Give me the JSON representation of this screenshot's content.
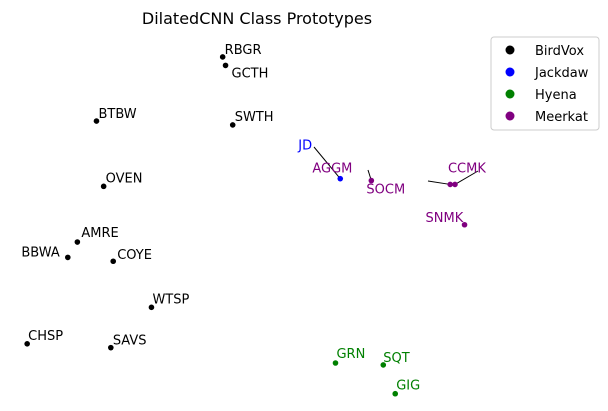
{
  "chart_data": {
    "type": "scatter",
    "title": "DilatedCNN Class Prototypes",
    "xlabel": "",
    "ylabel": "",
    "axes_visible": false,
    "grid": false,
    "legend_position": "top-right",
    "xlim": [
      0,
      100
    ],
    "ylim": [
      0,
      100
    ],
    "series": [
      {
        "name": "BirdVox",
        "color": "#000000",
        "points": [
          {
            "label": "RBGR",
            "x": 42.4,
            "y": 92.2
          },
          {
            "label": "GCTH",
            "x": 43.0,
            "y": 90.0
          },
          {
            "label": "BTBW",
            "x": 16.0,
            "y": 75.5
          },
          {
            "label": "SWTH",
            "x": 44.5,
            "y": 74.5
          },
          {
            "label": "OVEN",
            "x": 17.5,
            "y": 58.5
          },
          {
            "label": "AMRE",
            "x": 12.0,
            "y": 44.0
          },
          {
            "label": "BBWA",
            "x": 10.0,
            "y": 40.0
          },
          {
            "label": "COYE",
            "x": 19.5,
            "y": 39.0
          },
          {
            "label": "WTSP",
            "x": 27.5,
            "y": 27.0
          },
          {
            "label": "CHSP",
            "x": 1.5,
            "y": 17.5
          },
          {
            "label": "SAVS",
            "x": 19.0,
            "y": 16.5
          }
        ]
      },
      {
        "name": "Jackdaw",
        "color": "#0000ff",
        "points": [
          {
            "label": "JD",
            "x": 67.0,
            "y": 60.5
          }
        ]
      },
      {
        "name": "Hyena",
        "color": "#008000",
        "points": [
          {
            "label": "GRN",
            "x": 66.0,
            "y": 12.5
          },
          {
            "label": "SQT",
            "x": 76.0,
            "y": 12.0
          },
          {
            "label": "GIG",
            "x": 78.5,
            "y": 4.5
          }
        ]
      },
      {
        "name": "Meerkat",
        "color": "#800080",
        "points": [
          {
            "label": "AGGM",
            "x": 73.5,
            "y": 60.0
          },
          {
            "label": "SOCM",
            "x": 90.0,
            "y": 59.0
          },
          {
            "label": "CCMK",
            "x": 91.0,
            "y": 59.0
          },
          {
            "label": "SNMK",
            "x": 93.0,
            "y": 48.5
          }
        ]
      }
    ]
  }
}
